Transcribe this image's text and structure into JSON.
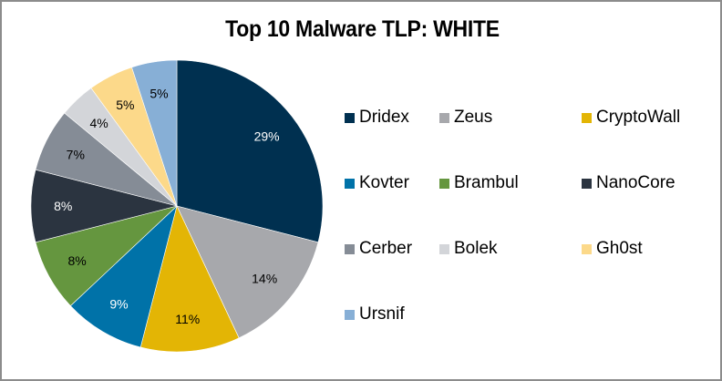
{
  "chart_data": {
    "type": "pie",
    "title": "Top 10 Malware TLP: WHITE",
    "categories": [
      "Dridex",
      "Zeus",
      "CryptoWall",
      "Kovter",
      "Brambul",
      "NanoCore",
      "Cerber",
      "Bolek",
      "Gh0st",
      "Ursnif"
    ],
    "values": [
      29,
      14,
      11,
      9,
      8,
      8,
      7,
      4,
      5,
      5
    ],
    "labels": [
      "29%",
      "14%",
      "11%",
      "9%",
      "8%",
      "8%",
      "7%",
      "4%",
      "5%",
      "5%"
    ],
    "colors": [
      "#003050",
      "#a7a8ac",
      "#e3b505",
      "#0072a8",
      "#65963f",
      "#2b3440",
      "#858c96",
      "#d3d5d9",
      "#fcd98a",
      "#87afd6"
    ],
    "label_colors": [
      "#ffffff",
      "#000000",
      "#000000",
      "#ffffff",
      "#000000",
      "#ffffff",
      "#000000",
      "#000000",
      "#000000",
      "#000000"
    ],
    "legend_position": "right",
    "start_angle_deg": 0,
    "direction": "clockwise"
  },
  "legend": {
    "items": [
      {
        "label": "Dridex",
        "color": "#003050"
      },
      {
        "label": "Zeus",
        "color": "#a7a8ac"
      },
      {
        "label": "CryptoWall",
        "color": "#e3b505"
      },
      {
        "label": "Kovter",
        "color": "#0072a8"
      },
      {
        "label": "Brambul",
        "color": "#65963f"
      },
      {
        "label": "NanoCore",
        "color": "#2b3440"
      },
      {
        "label": "Cerber",
        "color": "#858c96"
      },
      {
        "label": "Bolek",
        "color": "#d3d5d9"
      },
      {
        "label": "Gh0st",
        "color": "#fcd98a"
      },
      {
        "label": "Ursnif",
        "color": "#87afd6"
      }
    ]
  }
}
